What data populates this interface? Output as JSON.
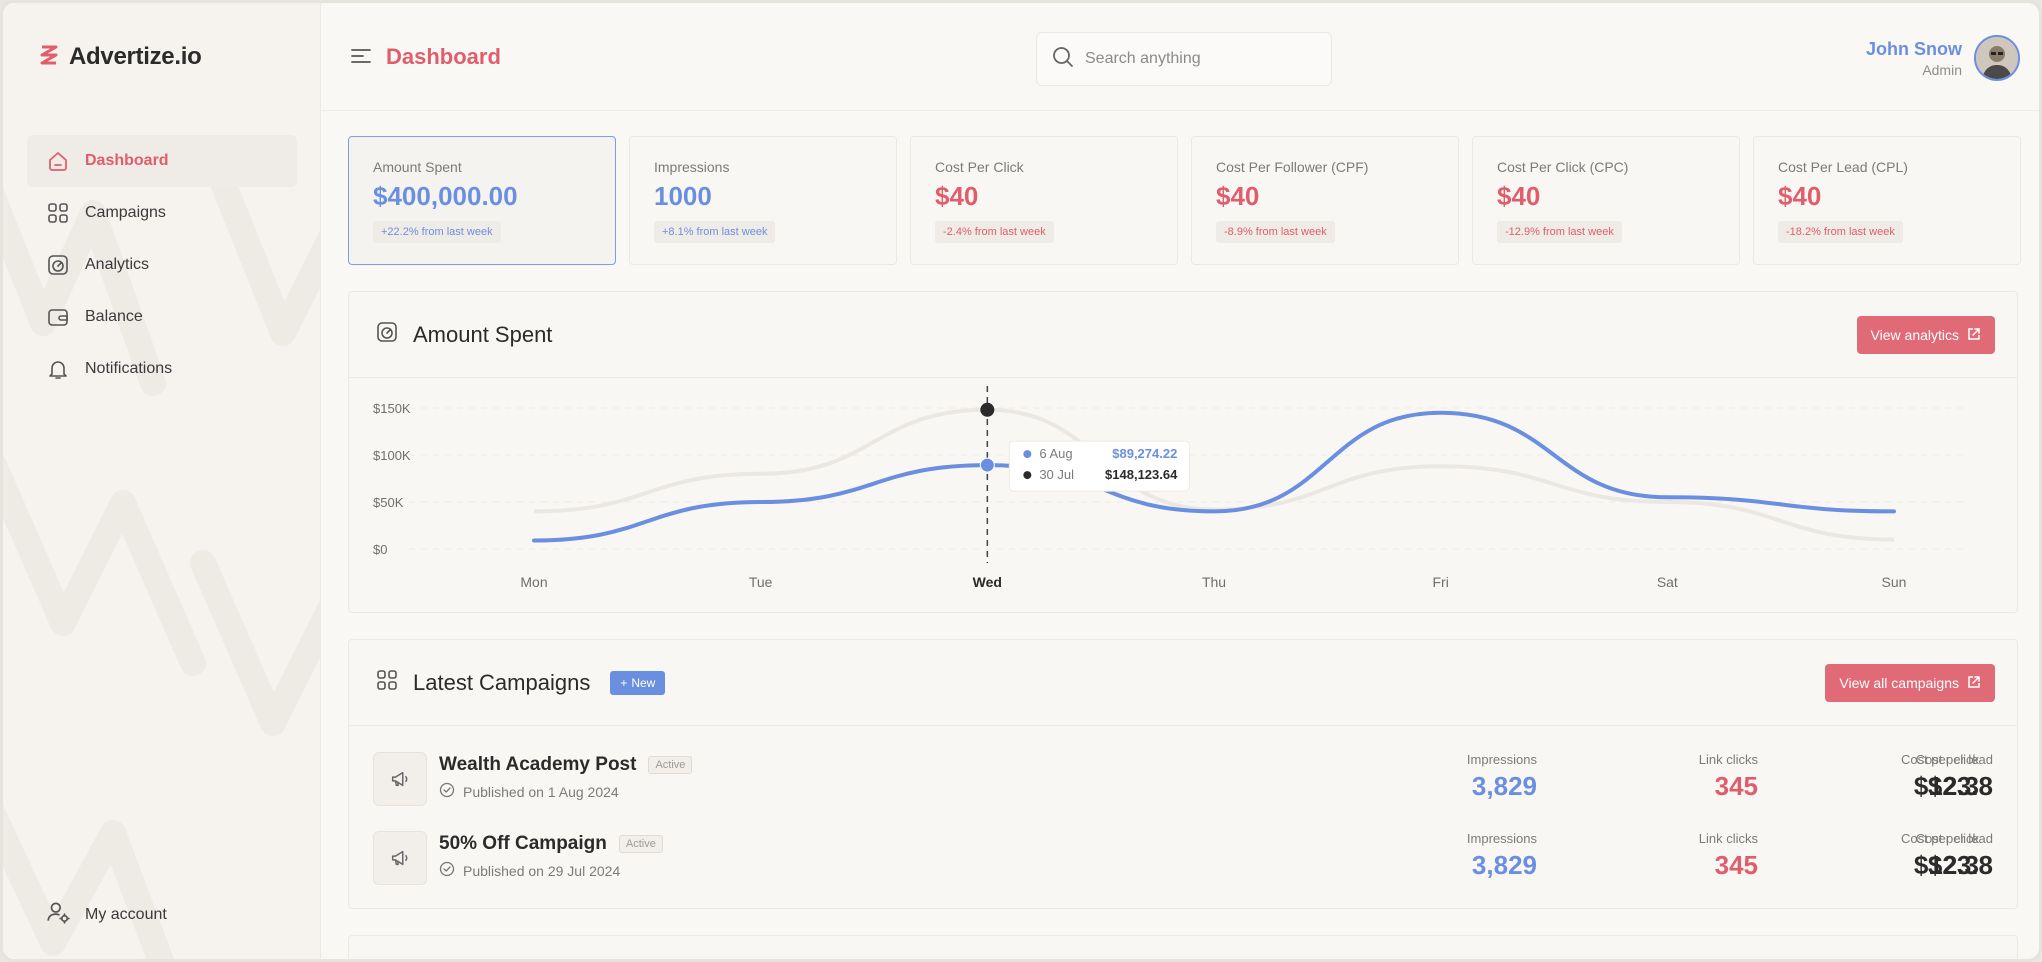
{
  "app": {
    "name": "Advertize.io"
  },
  "nav": {
    "items": [
      {
        "label": "Dashboard",
        "icon": "home-icon",
        "active": true
      },
      {
        "label": "Campaigns",
        "icon": "grid-icon",
        "active": false
      },
      {
        "label": "Analytics",
        "icon": "gauge-icon",
        "active": false
      },
      {
        "label": "Balance",
        "icon": "wallet-icon",
        "active": false
      },
      {
        "label": "Notifications",
        "icon": "bell-icon",
        "active": false
      }
    ],
    "account": "My account"
  },
  "header": {
    "title": "Dashboard",
    "search_placeholder": "Search anything",
    "user_name": "John Snow",
    "user_role": "Admin"
  },
  "stats": [
    {
      "label": "Amount Spent",
      "value": "$400,000.00",
      "delta": "+22.2% from last week",
      "tone": "blue"
    },
    {
      "label": "Impressions",
      "value": "1000",
      "delta": "+8.1% from last week",
      "tone": "blue"
    },
    {
      "label": "Cost Per Click",
      "value": "$40",
      "delta": "-2.4% from last week",
      "tone": "red"
    },
    {
      "label": "Cost Per Follower (CPF)",
      "value": "$40",
      "delta": "-8.9% from last week",
      "tone": "red"
    },
    {
      "label": "Cost Per Click (CPC)",
      "value": "$40",
      "delta": "-12.9% from last week",
      "tone": "red"
    },
    {
      "label": "Cost Per Lead (CPL)",
      "value": "$40",
      "delta": "-18.2% from last week",
      "tone": "red"
    }
  ],
  "chart_panel": {
    "title": "Amount Spent",
    "button": "View analytics"
  },
  "chart_data": {
    "type": "line",
    "categories": [
      "Mon",
      "Tue",
      "Wed",
      "Thu",
      "Fri",
      "Sat",
      "Sun"
    ],
    "highlight_category": "Wed",
    "ylim": [
      0,
      150000
    ],
    "y_ticks": [
      "$0",
      "$50K",
      "$100K",
      "$150K"
    ],
    "y_tick_values": [
      0,
      50000,
      100000,
      150000
    ],
    "series": [
      {
        "name": "6 Aug",
        "color": "#6b8fe0",
        "values": [
          9000,
          50000,
          89274.22,
          40000,
          145000,
          55000,
          40000
        ]
      },
      {
        "name": "30 Jul",
        "color": "#2b2b2b",
        "line_color": "#ebe7e2",
        "values": [
          40000,
          80000,
          148123.64,
          42000,
          88000,
          50000,
          10000
        ]
      }
    ],
    "tooltip": {
      "rows": [
        {
          "label": "6 Aug",
          "value": "$89,274.22",
          "color": "#6b8fe0"
        },
        {
          "label": "30 Jul",
          "value": "$148,123.64",
          "color": "#2b2b2b"
        }
      ]
    },
    "grid": true
  },
  "campaigns": {
    "title": "Latest Campaigns",
    "new_label": "New",
    "button": "View all campaigns",
    "items": [
      {
        "title": "Wealth Academy Post",
        "status": "Active",
        "published": "Published on 1 Aug 2024",
        "impressions_label": "Impressions",
        "impressions": "3,829",
        "clicks_label": "Link clicks",
        "clicks": "345",
        "cpc_label": "Cost per click",
        "cpc": "$12.3",
        "cpl_label": "Cost per lead",
        "cpl": "$23.8"
      },
      {
        "title": "50% Off Campaign",
        "status": "Active",
        "published": "Published on 29 Jul 2024",
        "impressions_label": "Impressions",
        "impressions": "3,829",
        "clicks_label": "Link clicks",
        "clicks": "345",
        "cpc_label": "Cost per click",
        "cpc": "$12.3",
        "cpl_label": "Cost per lead",
        "cpl": "$23.8"
      }
    ]
  }
}
